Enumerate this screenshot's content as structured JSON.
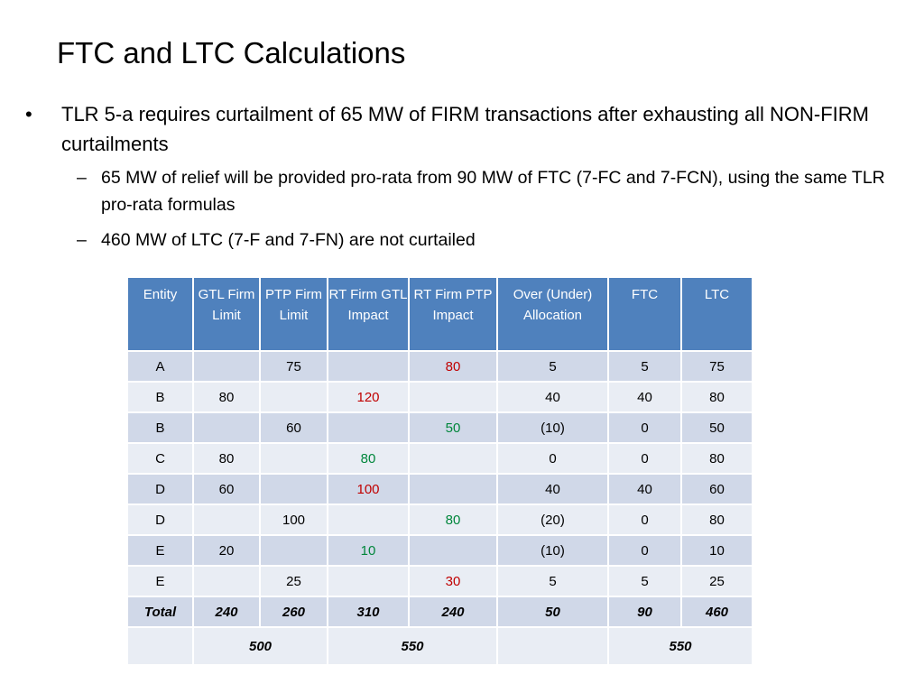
{
  "title": "FTC and LTC Calculations",
  "bullets": {
    "main": "TLR 5-a requires curtailment of 65 MW of FIRM transactions after exhausting all NON-FIRM curtailments",
    "sub": [
      "65 MW of relief will be provided pro-rata from 90 MW of FTC (7-FC and 7-FCN), using the same TLR pro-rata formulas",
      "460 MW of LTC (7-F and 7-FN) are not curtailed"
    ],
    "bullet_symbol": "•",
    "dash_symbol": "–"
  },
  "colors": {
    "header_bg": "#4f81bd",
    "row_dark": "#d0d8e8",
    "row_light": "#e9edf4",
    "red_value": "#c00000",
    "green_value": "#00863b"
  },
  "table": {
    "headers": [
      "Entity",
      "GTL Firm Limit",
      "PTP Firm Limit",
      "RT Firm GTL Impact",
      "RT Firm PTP Impact",
      "Over (Under) Allocation",
      "FTC",
      "LTC"
    ],
    "rows": [
      {
        "entity": "A",
        "gtl": "",
        "ptp": "75",
        "rt_gtl": "",
        "rt_ptp": "80",
        "rt_gtl_color": "",
        "rt_ptp_color": "red",
        "over": "5",
        "ftc": "5",
        "ltc": "75"
      },
      {
        "entity": "B",
        "gtl": "80",
        "ptp": "",
        "rt_gtl": "120",
        "rt_ptp": "",
        "rt_gtl_color": "red",
        "rt_ptp_color": "",
        "over": "40",
        "ftc": "40",
        "ltc": "80"
      },
      {
        "entity": "B",
        "gtl": "",
        "ptp": "60",
        "rt_gtl": "",
        "rt_ptp": "50",
        "rt_gtl_color": "",
        "rt_ptp_color": "green",
        "over": "(10)",
        "ftc": "0",
        "ltc": "50"
      },
      {
        "entity": "C",
        "gtl": "80",
        "ptp": "",
        "rt_gtl": "80",
        "rt_ptp": "",
        "rt_gtl_color": "green",
        "rt_ptp_color": "",
        "over": "0",
        "ftc": "0",
        "ltc": "80"
      },
      {
        "entity": "D",
        "gtl": "60",
        "ptp": "",
        "rt_gtl": "100",
        "rt_ptp": "",
        "rt_gtl_color": "red",
        "rt_ptp_color": "",
        "over": "40",
        "ftc": "40",
        "ltc": "60"
      },
      {
        "entity": "D",
        "gtl": "",
        "ptp": "100",
        "rt_gtl": "",
        "rt_ptp": "80",
        "rt_gtl_color": "",
        "rt_ptp_color": "green",
        "over": "(20)",
        "ftc": "0",
        "ltc": "80"
      },
      {
        "entity": "E",
        "gtl": "20",
        "ptp": "",
        "rt_gtl": "10",
        "rt_ptp": "",
        "rt_gtl_color": "green",
        "rt_ptp_color": "",
        "over": "(10)",
        "ftc": "0",
        "ltc": "10"
      },
      {
        "entity": "E",
        "gtl": "",
        "ptp": "25",
        "rt_gtl": "",
        "rt_ptp": "30",
        "rt_gtl_color": "",
        "rt_ptp_color": "red",
        "over": "5",
        "ftc": "5",
        "ltc": "25"
      }
    ],
    "total": {
      "label": "Total",
      "gtl": "240",
      "ptp": "260",
      "rt_gtl": "310",
      "rt_ptp": "240",
      "over": "50",
      "ftc": "90",
      "ltc": "460"
    },
    "sums": {
      "firm_limit": "500",
      "rt_impact": "550",
      "ftc_ltc": "550"
    }
  }
}
